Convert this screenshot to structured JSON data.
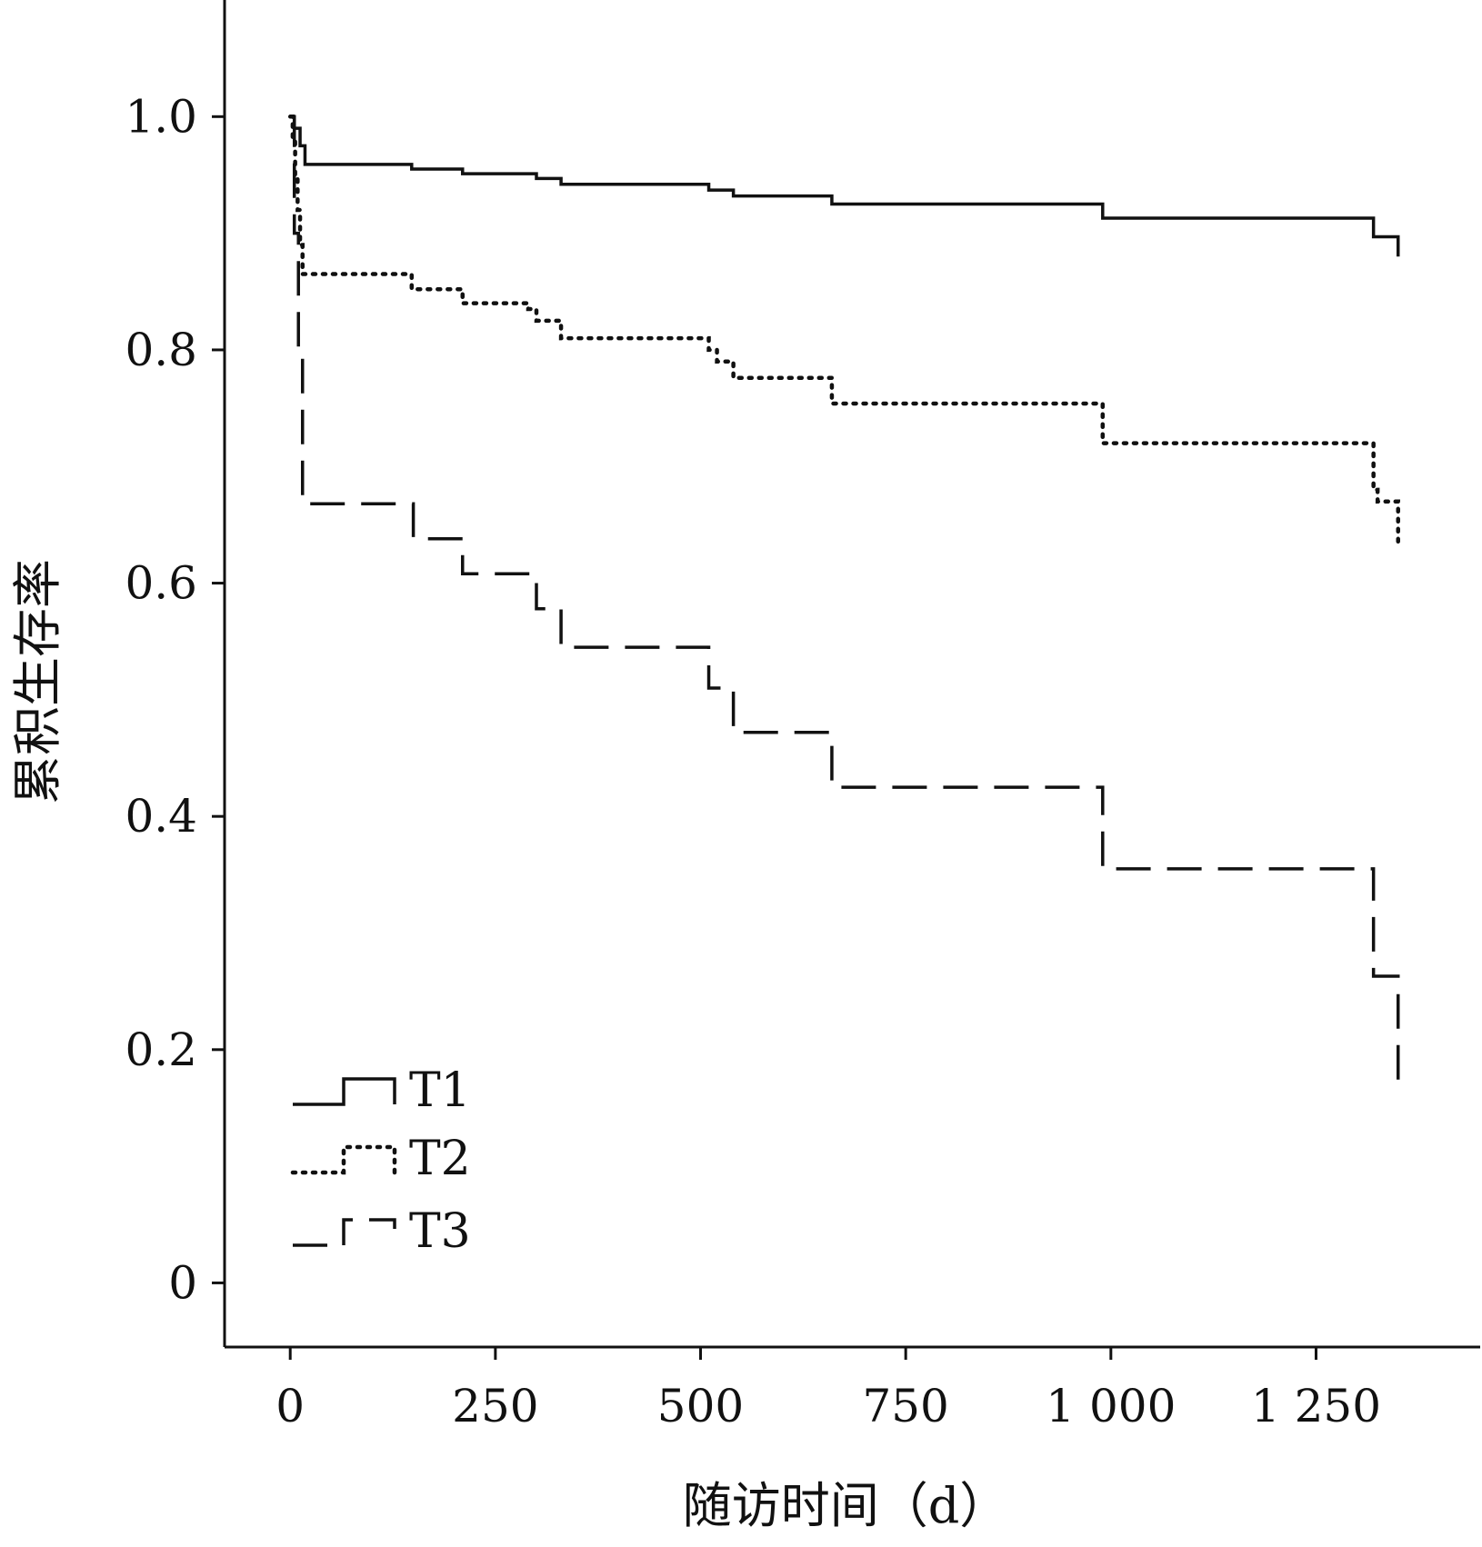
{
  "chart_data": {
    "type": "line",
    "step": true,
    "xlabel": "随访时间（d）",
    "ylabel": "累积生存率",
    "xlim": [
      -80,
      1450
    ],
    "ylim": [
      -0.055,
      1.1
    ],
    "x_ticks": [
      0,
      250,
      500,
      750,
      1000,
      1250
    ],
    "x_tick_labels": [
      "0",
      "250",
      "500",
      "750",
      "1 000",
      "1 250"
    ],
    "y_ticks": [
      0,
      0.2,
      0.4,
      0.6,
      0.8,
      1.0
    ],
    "y_tick_labels": [
      "0",
      "0.2",
      "0.4",
      "0.6",
      "0.8",
      "1.0"
    ],
    "grid": false,
    "legend_position": "bottom-left",
    "series": [
      {
        "name": "T1",
        "line_style": "solid",
        "x": [
          0,
          5,
          12,
          18,
          148,
          210,
          300,
          330,
          510,
          540,
          660,
          990,
          1320,
          1350
        ],
        "y": [
          1.0,
          0.99,
          0.975,
          0.959,
          0.955,
          0.951,
          0.947,
          0.942,
          0.937,
          0.932,
          0.925,
          0.913,
          0.897,
          0.88
        ]
      },
      {
        "name": "T2",
        "line_style": "dotted",
        "x": [
          0,
          3,
          6,
          9,
          12,
          15,
          148,
          210,
          290,
          300,
          330,
          510,
          520,
          540,
          660,
          990,
          1320,
          1325,
          1350
        ],
        "y": [
          1.0,
          0.98,
          0.95,
          0.92,
          0.89,
          0.865,
          0.852,
          0.84,
          0.835,
          0.825,
          0.81,
          0.8,
          0.79,
          0.776,
          0.754,
          0.72,
          0.68,
          0.67,
          0.63
        ]
      },
      {
        "name": "T3",
        "line_style": "dashed",
        "x": [
          0,
          5,
          10,
          15,
          150,
          210,
          300,
          330,
          510,
          540,
          660,
          990,
          1320,
          1350
        ],
        "y": [
          1.0,
          0.9,
          0.8,
          0.668,
          0.638,
          0.608,
          0.578,
          0.545,
          0.51,
          0.472,
          0.425,
          0.355,
          0.263,
          0.17
        ]
      }
    ]
  }
}
